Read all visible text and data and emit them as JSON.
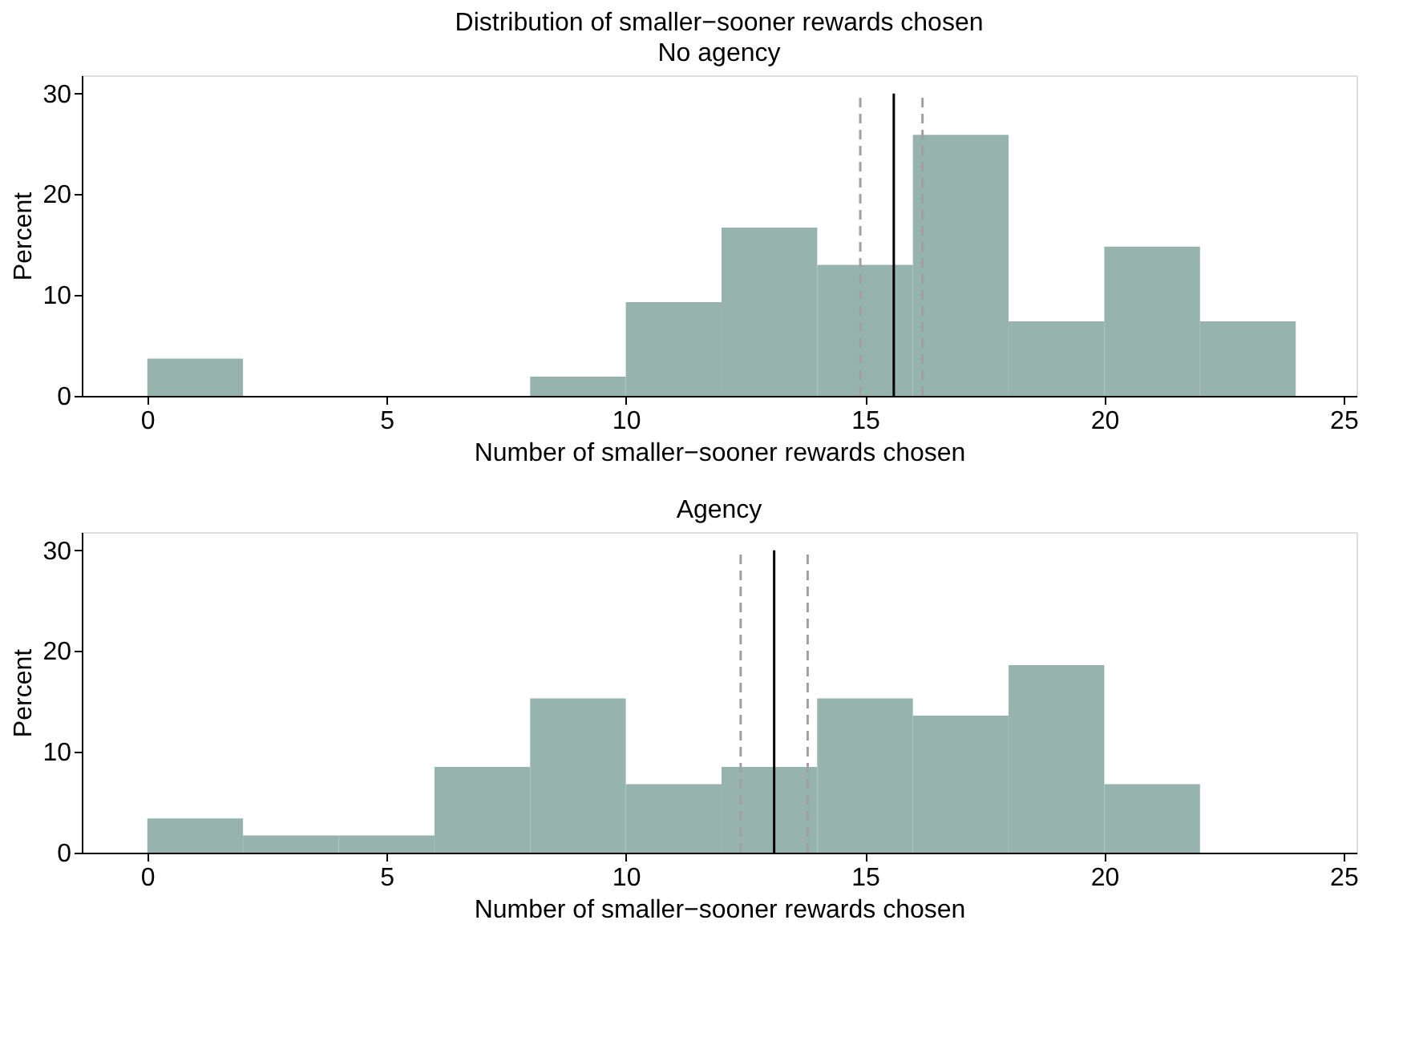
{
  "chart_data": [
    {
      "type": "histogram",
      "title": "Distribution of smaller−sooner rewards chosen",
      "subtitle": "No agency",
      "xlabel": "Number of smaller−sooner rewards chosen",
      "ylabel": "Percent",
      "bins": [
        0,
        2,
        4,
        6,
        8,
        10,
        12,
        14,
        16,
        18,
        20,
        22,
        24
      ],
      "values": [
        3.7,
        0,
        0,
        0,
        1.9,
        9.3,
        16.7,
        13.0,
        25.9,
        7.4,
        14.8,
        7.4
      ],
      "color": "#96b4ad",
      "xlim": [
        -1.37,
        25.27
      ],
      "ylim": [
        0,
        31.8
      ],
      "xticks": [
        0,
        5,
        10,
        15,
        20,
        25
      ],
      "yticks": [
        0,
        10,
        20,
        30
      ],
      "grid": false,
      "ref_lines": [
        {
          "axis": "x",
          "value": 15.6,
          "color": "#000000",
          "line_style": "solid"
        },
        {
          "axis": "x",
          "value": 14.9,
          "color": "#a0a0a0",
          "line_style": "dashed"
        },
        {
          "axis": "x",
          "value": 16.2,
          "color": "#a0a0a0",
          "line_style": "dashed"
        }
      ]
    },
    {
      "type": "histogram",
      "title": "Agency",
      "xlabel": "Number of smaller−sooner rewards chosen",
      "ylabel": "Percent",
      "bins": [
        0,
        2,
        4,
        6,
        8,
        10,
        12,
        14,
        16,
        18,
        20,
        22
      ],
      "values": [
        3.4,
        1.7,
        1.7,
        8.5,
        15.3,
        6.8,
        8.5,
        15.3,
        13.6,
        18.6,
        6.8
      ],
      "color": "#96b4ad",
      "xlim": [
        -1.37,
        25.27
      ],
      "ylim": [
        0,
        31.8
      ],
      "xticks": [
        0,
        5,
        10,
        15,
        20,
        25
      ],
      "yticks": [
        0,
        10,
        20,
        30
      ],
      "grid": false,
      "ref_lines": [
        {
          "axis": "x",
          "value": 13.1,
          "color": "#000000",
          "line_style": "solid"
        },
        {
          "axis": "x",
          "value": 12.4,
          "color": "#a0a0a0",
          "line_style": "dashed"
        },
        {
          "axis": "x",
          "value": 13.8,
          "color": "#a0a0a0",
          "line_style": "dashed"
        }
      ]
    }
  ]
}
